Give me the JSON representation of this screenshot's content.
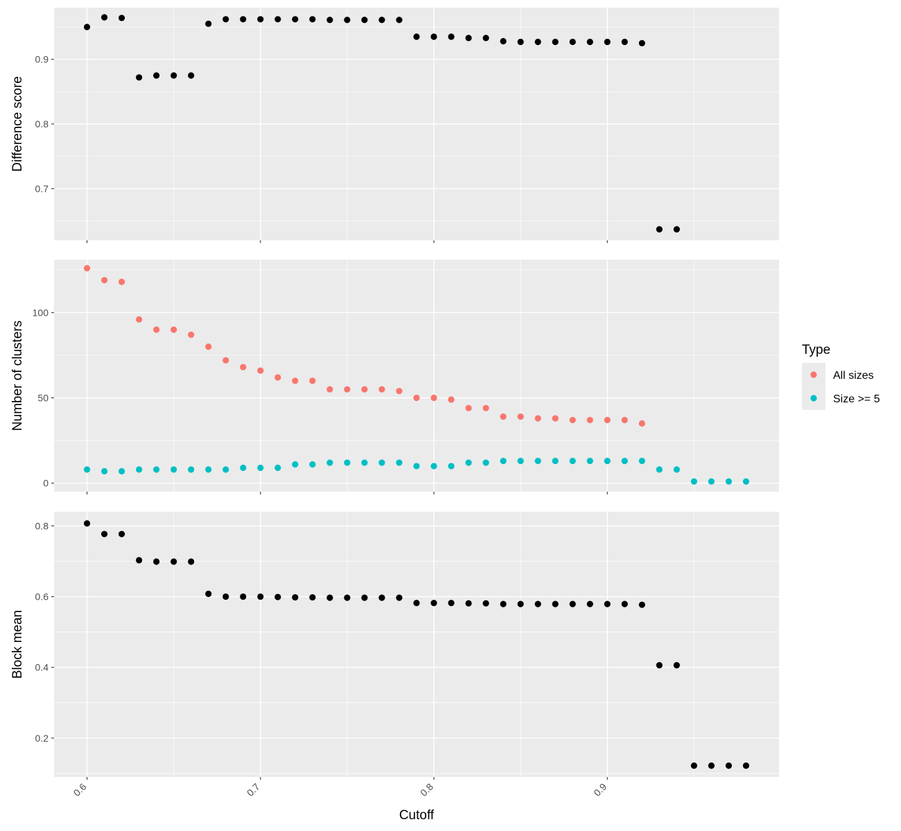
{
  "chart_data": {
    "type": "scatter",
    "xlabel": "Cutoff",
    "x_ticks": [
      "0.6",
      "0.7",
      "0.8",
      "0.9"
    ],
    "xlim": [
      0.581,
      0.999
    ],
    "grid": true,
    "legend": {
      "title": "Type",
      "placement": "right",
      "entries": [
        {
          "name": "All sizes",
          "color": "#f8766d"
        },
        {
          "name": "Size >= 5",
          "color": "#00bfc4"
        }
      ]
    },
    "panels": [
      {
        "ylabel": "Difference score",
        "ylim": [
          0.62,
          0.98
        ],
        "y_ticks": [
          "0.7",
          "0.8",
          "0.9"
        ],
        "series": [
          {
            "color": "#000000",
            "points": [
              [
                0.6,
                0.95
              ],
              [
                0.61,
                0.965
              ],
              [
                0.62,
                0.964
              ],
              [
                0.63,
                0.872
              ],
              [
                0.64,
                0.875
              ],
              [
                0.65,
                0.875
              ],
              [
                0.66,
                0.875
              ],
              [
                0.67,
                0.955
              ],
              [
                0.68,
                0.962
              ],
              [
                0.69,
                0.962
              ],
              [
                0.7,
                0.962
              ],
              [
                0.71,
                0.962
              ],
              [
                0.72,
                0.962
              ],
              [
                0.73,
                0.962
              ],
              [
                0.74,
                0.961
              ],
              [
                0.75,
                0.961
              ],
              [
                0.76,
                0.961
              ],
              [
                0.77,
                0.961
              ],
              [
                0.78,
                0.961
              ],
              [
                0.79,
                0.935
              ],
              [
                0.8,
                0.935
              ],
              [
                0.81,
                0.935
              ],
              [
                0.82,
                0.933
              ],
              [
                0.83,
                0.933
              ],
              [
                0.84,
                0.928
              ],
              [
                0.85,
                0.927
              ],
              [
                0.86,
                0.927
              ],
              [
                0.87,
                0.927
              ],
              [
                0.88,
                0.927
              ],
              [
                0.89,
                0.927
              ],
              [
                0.9,
                0.927
              ],
              [
                0.91,
                0.927
              ],
              [
                0.92,
                0.925
              ],
              [
                0.93,
                0.637
              ],
              [
                0.94,
                0.637
              ]
            ]
          }
        ]
      },
      {
        "ylabel": "Number of clusters",
        "ylim": [
          -5,
          131
        ],
        "y_ticks": [
          "0",
          "50",
          "100"
        ],
        "series": [
          {
            "name": "All sizes",
            "color": "#f8766d",
            "points": [
              [
                0.6,
                126
              ],
              [
                0.61,
                119
              ],
              [
                0.62,
                118
              ],
              [
                0.63,
                96
              ],
              [
                0.64,
                90
              ],
              [
                0.65,
                90
              ],
              [
                0.66,
                87
              ],
              [
                0.67,
                80
              ],
              [
                0.68,
                72
              ],
              [
                0.69,
                68
              ],
              [
                0.7,
                66
              ],
              [
                0.71,
                62
              ],
              [
                0.72,
                60
              ],
              [
                0.73,
                60
              ],
              [
                0.74,
                55
              ],
              [
                0.75,
                55
              ],
              [
                0.76,
                55
              ],
              [
                0.77,
                55
              ],
              [
                0.78,
                54
              ],
              [
                0.79,
                50
              ],
              [
                0.8,
                50
              ],
              [
                0.81,
                49
              ],
              [
                0.82,
                44
              ],
              [
                0.83,
                44
              ],
              [
                0.84,
                39
              ],
              [
                0.85,
                39
              ],
              [
                0.86,
                38
              ],
              [
                0.87,
                38
              ],
              [
                0.88,
                37
              ],
              [
                0.89,
                37
              ],
              [
                0.9,
                37
              ],
              [
                0.91,
                37
              ],
              [
                0.92,
                35
              ]
            ]
          },
          {
            "name": "Size >= 5",
            "color": "#00bfc4",
            "points": [
              [
                0.6,
                8
              ],
              [
                0.61,
                7
              ],
              [
                0.62,
                7
              ],
              [
                0.63,
                8
              ],
              [
                0.64,
                8
              ],
              [
                0.65,
                8
              ],
              [
                0.66,
                8
              ],
              [
                0.67,
                8
              ],
              [
                0.68,
                8
              ],
              [
                0.69,
                9
              ],
              [
                0.7,
                9
              ],
              [
                0.71,
                9
              ],
              [
                0.72,
                11
              ],
              [
                0.73,
                11
              ],
              [
                0.74,
                12
              ],
              [
                0.75,
                12
              ],
              [
                0.76,
                12
              ],
              [
                0.77,
                12
              ],
              [
                0.78,
                12
              ],
              [
                0.79,
                10
              ],
              [
                0.8,
                10
              ],
              [
                0.81,
                10
              ],
              [
                0.82,
                12
              ],
              [
                0.83,
                12
              ],
              [
                0.84,
                13
              ],
              [
                0.85,
                13
              ],
              [
                0.86,
                13
              ],
              [
                0.87,
                13
              ],
              [
                0.88,
                13
              ],
              [
                0.89,
                13
              ],
              [
                0.9,
                13
              ],
              [
                0.91,
                13
              ],
              [
                0.92,
                13
              ],
              [
                0.93,
                8
              ],
              [
                0.94,
                8
              ],
              [
                0.95,
                1
              ],
              [
                0.96,
                1
              ],
              [
                0.97,
                1
              ],
              [
                0.98,
                1
              ]
            ]
          }
        ]
      },
      {
        "ylabel": "Block mean",
        "ylim": [
          0.09,
          0.84
        ],
        "y_ticks": [
          "0.2",
          "0.4",
          "0.6",
          "0.8"
        ],
        "series": [
          {
            "color": "#000000",
            "points": [
              [
                0.6,
                0.807
              ],
              [
                0.61,
                0.777
              ],
              [
                0.62,
                0.777
              ],
              [
                0.63,
                0.703
              ],
              [
                0.64,
                0.699
              ],
              [
                0.65,
                0.699
              ],
              [
                0.66,
                0.699
              ],
              [
                0.67,
                0.608
              ],
              [
                0.68,
                0.6
              ],
              [
                0.69,
                0.6
              ],
              [
                0.7,
                0.6
              ],
              [
                0.71,
                0.599
              ],
              [
                0.72,
                0.598
              ],
              [
                0.73,
                0.598
              ],
              [
                0.74,
                0.597
              ],
              [
                0.75,
                0.597
              ],
              [
                0.76,
                0.597
              ],
              [
                0.77,
                0.597
              ],
              [
                0.78,
                0.597
              ],
              [
                0.79,
                0.582
              ],
              [
                0.8,
                0.582
              ],
              [
                0.81,
                0.582
              ],
              [
                0.82,
                0.581
              ],
              [
                0.83,
                0.581
              ],
              [
                0.84,
                0.579
              ],
              [
                0.85,
                0.579
              ],
              [
                0.86,
                0.579
              ],
              [
                0.87,
                0.579
              ],
              [
                0.88,
                0.579
              ],
              [
                0.89,
                0.579
              ],
              [
                0.9,
                0.579
              ],
              [
                0.91,
                0.579
              ],
              [
                0.92,
                0.577
              ],
              [
                0.93,
                0.406
              ],
              [
                0.94,
                0.406
              ],
              [
                0.95,
                0.122
              ],
              [
                0.96,
                0.122
              ],
              [
                0.97,
                0.122
              ],
              [
                0.98,
                0.122
              ]
            ]
          }
        ]
      }
    ]
  }
}
